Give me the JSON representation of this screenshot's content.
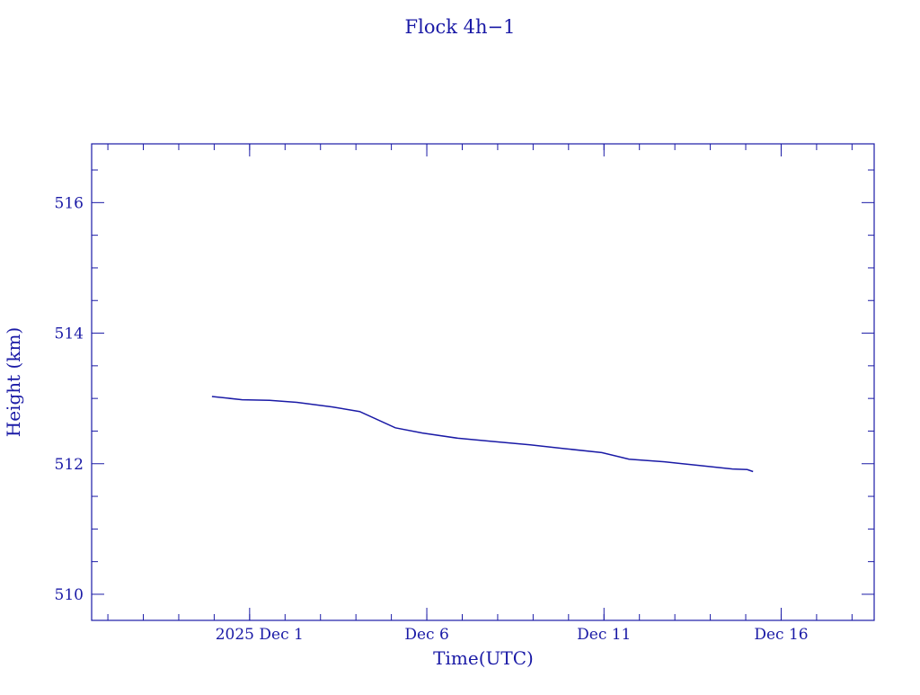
{
  "chart_data": {
    "type": "line",
    "title": "Flock 4h−1",
    "xlabel": "Time(UTC)",
    "ylabel": "Height (km)",
    "xlim": [
      "2025-11-26T13:00",
      "2025-12-18T15:00"
    ],
    "ylim": [
      509.6,
      516.9
    ],
    "x_ticks": [
      {
        "date": "2025-12-01",
        "label": "2025 Dec  1"
      },
      {
        "date": "2025-12-06",
        "label": "Dec  6"
      },
      {
        "date": "2025-12-11",
        "label": "Dec 11"
      },
      {
        "date": "2025-12-16",
        "label": "Dec 16"
      }
    ],
    "y_ticks": [
      510,
      512,
      514,
      516
    ],
    "grid": false,
    "color": "#1a1aa6",
    "series": [
      {
        "x": [
          "2025-11-29T22:30",
          "2025-11-30T19:00",
          "2025-12-01T13:30",
          "2025-12-02T08:00",
          "2025-12-03T08:00",
          "2025-12-04T02:30",
          "2025-12-05T02:40",
          "2025-12-05T21:00",
          "2025-12-06T21:00",
          "2025-12-07T21:30",
          "2025-12-08T22:00",
          "2025-12-09T22:00",
          "2025-12-10T22:30",
          "2025-12-11T17:00",
          "2025-12-12T17:00",
          "2025-12-13T17:30",
          "2025-12-14T15:00",
          "2025-12-15T01:00",
          "2025-12-15T05:00"
        ],
        "y": [
          513.03,
          512.98,
          512.97,
          512.94,
          512.87,
          512.8,
          512.55,
          512.47,
          512.39,
          512.34,
          512.29,
          512.23,
          512.17,
          512.07,
          512.03,
          511.97,
          511.92,
          511.91,
          511.88
        ]
      }
    ]
  }
}
